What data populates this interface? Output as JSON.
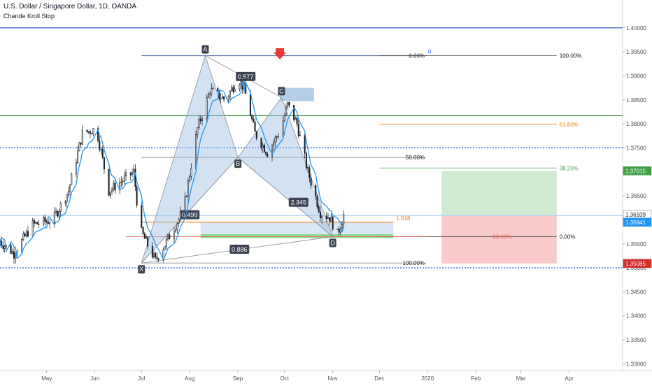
{
  "header": {
    "title": "U.S. Dollar / Singapore Dollar, 1D, OANDA",
    "indicator": "Chande Kroll Stop"
  },
  "colors": {
    "up": "#131722",
    "down": "#131722",
    "stop_line": "#2196f3",
    "harmonic_fill": "#9cbfe3",
    "harmonic_stroke": "#8a8f99",
    "profit_zone": "#c8e6c9",
    "loss_zone": "#f8c1c1",
    "green_line": "#388e3c",
    "blue_line": "#1e4bb8",
    "dotted_line": "#2962ff",
    "fib_orange": "#f57c00",
    "red_arrow": "#e53935",
    "last_price": "#2196f3",
    "stop_price": "#d32f2f",
    "target_price": "#43a047"
  },
  "chart_data": {
    "type": "candlestick",
    "symbol": "USDSGD",
    "timeframe": "1D",
    "ylim": [
      1.3286,
      1.4058
    ],
    "y_ticks": [
      "1.40000",
      "1.39500",
      "1.39000",
      "1.38500",
      "1.38000",
      "1.37500",
      "1.37000",
      "1.36500",
      "1.36000",
      "1.35500",
      "1.35000",
      "1.34500",
      "1.34000",
      "1.33500",
      "1.33000"
    ],
    "x_ticks": [
      {
        "label": "May",
        "date": "2019-05-01"
      },
      {
        "label": "Jun",
        "date": "2019-06-01"
      },
      {
        "label": "Jul",
        "date": "2019-07-01"
      },
      {
        "label": "Aug",
        "date": "2019-08-01"
      },
      {
        "label": "Sep",
        "date": "2019-09-01"
      },
      {
        "label": "Oct",
        "date": "2019-10-01"
      },
      {
        "label": "Nov",
        "date": "2019-11-01"
      },
      {
        "label": "Dec",
        "date": "2019-12-01"
      },
      {
        "label": "2020",
        "date": "2020-01-01"
      },
      {
        "label": "Feb",
        "date": "2020-02-01"
      },
      {
        "label": "Mar",
        "date": "2020-03-01"
      },
      {
        "label": "Apr",
        "date": "2020-04-01"
      }
    ],
    "price_path": [
      {
        "date": "2019-04-01",
        "price": 1.3555
      },
      {
        "date": "2019-04-10",
        "price": 1.353
      },
      {
        "date": "2019-04-22",
        "price": 1.359
      },
      {
        "date": "2019-05-05",
        "price": 1.36
      },
      {
        "date": "2019-05-15",
        "price": 1.366
      },
      {
        "date": "2019-05-24",
        "price": 1.378
      },
      {
        "date": "2019-06-02",
        "price": 1.379
      },
      {
        "date": "2019-06-10",
        "price": 1.366
      },
      {
        "date": "2019-06-18",
        "price": 1.368
      },
      {
        "date": "2019-06-26",
        "price": 1.37
      },
      {
        "date": "2019-06-30",
        "price": 1.358
      },
      {
        "date": "2019-07-10",
        "price": 1.3515
      },
      {
        "date": "2019-07-18",
        "price": 1.356
      },
      {
        "date": "2019-07-28",
        "price": 1.362
      },
      {
        "date": "2019-08-06",
        "price": 1.379
      },
      {
        "date": "2019-08-14",
        "price": 1.387
      },
      {
        "date": "2019-08-24",
        "price": 1.385
      },
      {
        "date": "2019-09-01",
        "price": 1.3895
      },
      {
        "date": "2019-09-05",
        "price": 1.3875
      },
      {
        "date": "2019-09-12",
        "price": 1.378
      },
      {
        "date": "2019-09-20",
        "price": 1.374
      },
      {
        "date": "2019-09-28",
        "price": 1.3785
      },
      {
        "date": "2019-10-03",
        "price": 1.384
      },
      {
        "date": "2019-10-09",
        "price": 1.38
      },
      {
        "date": "2019-10-16",
        "price": 1.37
      },
      {
        "date": "2019-10-24",
        "price": 1.3615
      },
      {
        "date": "2019-10-30",
        "price": 1.3605
      },
      {
        "date": "2019-11-04",
        "price": 1.357
      },
      {
        "date": "2019-11-08",
        "price": 1.361
      }
    ],
    "stop_offset": 0.0012,
    "harmonic_pattern": {
      "points": [
        {
          "label": "X",
          "date": "2019-07-01",
          "price": 1.351
        },
        {
          "label": "A",
          "date": "2019-08-11",
          "price": 1.3942
        },
        {
          "label": "B",
          "date": "2019-09-01",
          "price": 1.373
        },
        {
          "label": "C",
          "date": "2019-09-29",
          "price": 1.3855
        },
        {
          "label": "D",
          "date": "2019-11-01",
          "price": 1.3565
        }
      ],
      "ratios": [
        {
          "text": "0.499",
          "date": "2019-08-01",
          "price": 1.361
        },
        {
          "text": "0.577",
          "date": "2019-09-06",
          "price": 1.3898
        },
        {
          "text": "2.345",
          "date": "2019-10-10",
          "price": 1.3636
        },
        {
          "text": "0.886",
          "date": "2019-09-02",
          "price": 1.3538
        }
      ]
    },
    "fib_retracement": {
      "start_date": "2019-07-01",
      "end_date": "2019-12-31",
      "levels": [
        {
          "price": 1.3942,
          "text": "0.00%"
        },
        {
          "price": 1.373,
          "text": "50.00%"
        },
        {
          "price": 1.351,
          "text": "100.00%"
        }
      ]
    },
    "fib_extension": {
      "start_date": "2019-12-01",
      "end_date": "2020-03-24",
      "levels": [
        {
          "price": 1.3942,
          "text": "100.00%"
        },
        {
          "price": 1.3799,
          "text": "61.80%"
        },
        {
          "price": 1.3708,
          "text": "38.20%"
        },
        {
          "price": 1.3565,
          "text": "0.00%"
        }
      ]
    },
    "fib_zero_label": "0",
    "fib_1618": {
      "text": "1.618",
      "price": 1.3595,
      "start_date": "2019-07-01",
      "end_date": "2019-12-10"
    },
    "fib_886_label": "88.60%",
    "prz_zone": {
      "start_date": "2019-08-08",
      "end_date": "2019-12-10",
      "top": 1.3595,
      "bottom": 1.357
    },
    "prz_green": {
      "start_date": "2019-08-08",
      "end_date": "2019-12-10",
      "top": 1.357,
      "bottom": 1.3562
    },
    "c_box": {
      "start_date": "2019-09-28",
      "end_date": "2019-10-20",
      "top": 1.3875,
      "bottom": 1.3847
    },
    "horizontal_lines": [
      {
        "price": 1.4,
        "style": "solid",
        "color": "#1e4bb8"
      },
      {
        "price": 1.3817,
        "style": "solid",
        "color": "#388e3c"
      },
      {
        "price": 1.375,
        "style": "dotted",
        "color": "#2962ff"
      },
      {
        "price": 1.3609,
        "style": "solid",
        "color": "#b3d4f5"
      },
      {
        "price": 1.35,
        "style": "dotted",
        "color": "#2962ff"
      }
    ],
    "position": {
      "start_date": "2020-01-10",
      "end_date": "2020-03-24",
      "target": 1.3702,
      "entry": 1.3609,
      "stop": 1.3509
    },
    "red_arrow": {
      "date": "2019-09-28",
      "price": 1.394
    },
    "price_labels": [
      {
        "text": "1.37015",
        "price": 1.3702,
        "kind": "target"
      },
      {
        "text": "1.36109",
        "price": 1.3611,
        "kind": "last"
      },
      {
        "text": "1.35941",
        "price": 1.3595,
        "kind": "stop_line"
      },
      {
        "text": "1.35085",
        "price": 1.3509,
        "kind": "stop"
      }
    ]
  }
}
